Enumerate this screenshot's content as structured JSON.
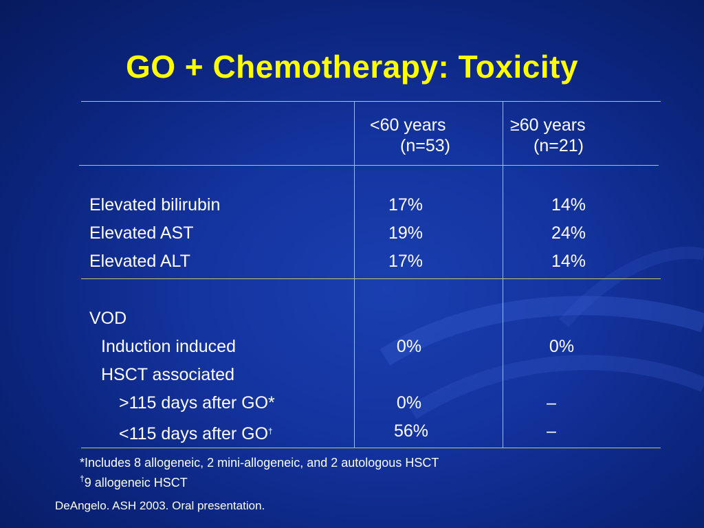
{
  "slide": {
    "title": "GO + Chemotherapy: Toxicity",
    "background_color": "#1434a0",
    "title_color": "#ffff00",
    "rule_color": "#c8c86a"
  },
  "table": {
    "columns": [
      {
        "line1": "<60 years",
        "line2": "(n=53)"
      },
      {
        "line1": "≥60 years",
        "line2": "(n=21)"
      }
    ],
    "rows": [
      {
        "label": "Elevated bilirubin",
        "col1": "17%",
        "col2": "14%"
      },
      {
        "label": "Elevated AST",
        "col1": "19%",
        "col2": "24%"
      },
      {
        "label": "Elevated ALT",
        "col1": "17%",
        "col2": "14%"
      },
      {
        "label": "VOD",
        "col1": "",
        "col2": ""
      },
      {
        "label": "Induction induced",
        "col1": "0%",
        "col2": "0%"
      },
      {
        "label": "HSCT associated",
        "col1": "",
        "col2": ""
      },
      {
        "label": ">115 days after GO*",
        "col1": "0%",
        "col2": "–"
      },
      {
        "label": "<115 days after GO",
        "label_sup": "†",
        "col1": "56%",
        "col2": "–"
      }
    ]
  },
  "footnotes": [
    {
      "marker": "",
      "text": "*Includes 8 allogeneic, 2 mini-allogeneic, and 2 autologous HSCT"
    },
    {
      "marker": "†",
      "text": "9 allogeneic HSCT"
    }
  ],
  "citation": "DeAngelo. ASH 2003. Oral presentation."
}
